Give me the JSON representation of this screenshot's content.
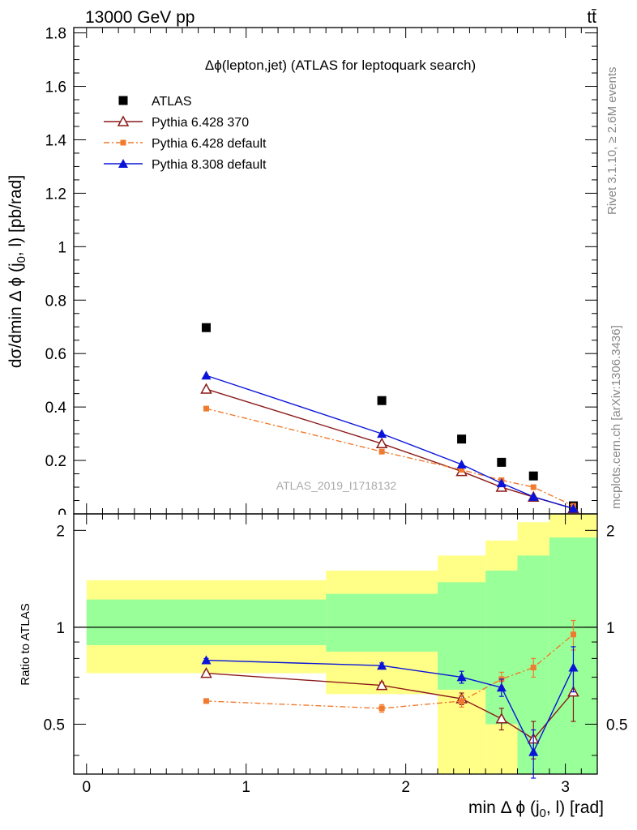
{
  "header": {
    "energy": "13000 GeV pp",
    "process": "tt̄"
  },
  "side_labels": {
    "rivet": "Rivet 3.1.10, ≥ 2.6M events",
    "mcplots": "mcplots.cern.ch [arXiv:1306.3436]"
  },
  "colors": {
    "data": "#000000",
    "py6_370": "#8b1a1a",
    "py6_default": "#f07a2d",
    "py8": "#0a14d8",
    "band_inner": "#99ff99",
    "band_outer": "#ffff88"
  },
  "chart_data": [
    {
      "type": "scatter",
      "title": "Δϕ(lepton,jet) (ATLAS for leptoquark search)",
      "watermark": "ATLAS_2019_I1718132",
      "xlim": [
        -0.08,
        3.2
      ],
      "ylim": [
        0,
        1.82
      ],
      "ylabel": "dσ/dmin Δ ϕ (j0, l) [pb/rad]",
      "yticks": [
        0.2,
        0.4,
        0.6,
        0.8,
        1,
        1.2,
        1.4,
        1.6,
        1.8
      ],
      "ytick_labels": [
        "0.2",
        "0.4",
        "0.6",
        "0.8",
        "1",
        "1.2",
        "1.4",
        "1.6",
        "1.8"
      ],
      "cut_label": "0",
      "x": [
        0.75,
        1.85,
        2.35,
        2.6,
        2.8,
        3.05
      ],
      "series": [
        {
          "name": "ATLAS",
          "marker": "square",
          "values": [
            0.697,
            0.424,
            0.28,
            0.193,
            0.142,
            0.03
          ]
        },
        {
          "name": "Pythia 6.428 370",
          "marker": "open-triangle",
          "values": [
            0.467,
            0.263,
            0.159,
            0.1,
            0.063,
            0.02
          ]
        },
        {
          "name": "Pythia 6.428 default",
          "marker": "small-square",
          "dashed": true,
          "values": [
            0.394,
            0.233,
            0.165,
            0.126,
            0.1,
            0.03
          ]
        },
        {
          "name": "Pythia 8.308 default",
          "marker": "filled-triangle",
          "values": [
            0.518,
            0.3,
            0.185,
            0.115,
            0.064,
            0.02
          ]
        }
      ]
    },
    {
      "type": "line",
      "xlabel": "min Δ ϕ (j0, l) [rad]",
      "ylabel": "Ratio to ATLAS",
      "xlim": [
        -0.08,
        3.2
      ],
      "ylim": [
        0.35,
        2.25
      ],
      "xticks": [
        0,
        1,
        2,
        3
      ],
      "xtick_labels": [
        "0",
        "1",
        "2",
        "3"
      ],
      "yticks": [
        0.5,
        1,
        2
      ],
      "ytick_labels": [
        "0.5",
        "1",
        "2"
      ],
      "reference_line": 1,
      "bins": [
        {
          "lo": 0,
          "hi": 1.5,
          "inner": [
            0.88,
            1.22
          ],
          "outer": [
            0.72,
            1.4
          ]
        },
        {
          "lo": 1.5,
          "hi": 2.2,
          "inner": [
            0.84,
            1.27
          ],
          "outer": [
            0.62,
            1.5
          ]
        },
        {
          "lo": 2.2,
          "hi": 2.5,
          "inner": [
            0.64,
            1.38
          ],
          "outer": [
            0.3,
            1.67
          ]
        },
        {
          "lo": 2.5,
          "hi": 2.7,
          "inner": [
            0.5,
            1.5
          ],
          "outer": [
            0.3,
            1.86
          ]
        },
        {
          "lo": 2.7,
          "hi": 2.9,
          "inner": [
            0.3,
            1.67
          ],
          "outer": [
            0.3,
            2.12
          ]
        },
        {
          "lo": 2.9,
          "hi": 3.2,
          "inner": [
            0.3,
            1.9
          ],
          "outer": [
            0.3,
            2.3
          ]
        }
      ],
      "x": [
        0.75,
        1.85,
        2.35,
        2.6,
        2.8,
        3.05
      ],
      "series": [
        {
          "name": "Pythia 6.428 370",
          "values": [
            0.72,
            0.66,
            0.6,
            0.52,
            0.45,
            0.63
          ],
          "errors": [
            0.01,
            0.015,
            0.025,
            0.04,
            0.06,
            0.12
          ]
        },
        {
          "name": "Pythia 6.428 default",
          "values": [
            0.59,
            0.56,
            0.59,
            0.69,
            0.75,
            0.95
          ],
          "errors": [
            0.008,
            0.015,
            0.025,
            0.035,
            0.05,
            0.1
          ]
        },
        {
          "name": "Pythia 8.308 default",
          "values": [
            0.79,
            0.76,
            0.7,
            0.65,
            0.41,
            0.75
          ],
          "errors": [
            0.01,
            0.015,
            0.03,
            0.04,
            0.07,
            0.12
          ]
        }
      ]
    }
  ]
}
